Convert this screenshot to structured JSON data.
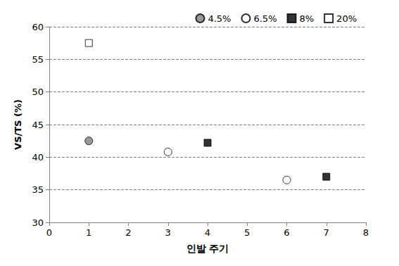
{
  "chart_data": {
    "type": "scatter",
    "x_label": "인발 주기",
    "y_label": "VS/TS (%)",
    "xlim": [
      0,
      8
    ],
    "xticks": [
      0,
      1,
      2,
      3,
      4,
      5,
      6,
      7,
      8
    ],
    "ylim": [
      30,
      60
    ],
    "yticks": [
      30,
      35,
      40,
      45,
      50,
      55,
      60
    ],
    "grid": true,
    "legend": "top-right",
    "series": [
      {
        "name": "4.5%",
        "color": "#808080",
        "marker": "circle",
        "x": [
          1
        ],
        "values": [
          42.5
        ]
      },
      {
        "name": "6.5%",
        "color": "#ffffff",
        "marker": "circle",
        "x": [
          3,
          6
        ],
        "values": [
          40.8,
          36.5
        ]
      },
      {
        "name": "8%",
        "color": "#000000",
        "marker": "square",
        "x": [
          4,
          7
        ],
        "values": [
          42.2,
          37.0
        ]
      },
      {
        "name": "20%",
        "color": "#ffffff",
        "marker": "square",
        "x": [
          1
        ],
        "values": [
          57.5
        ]
      }
    ]
  }
}
